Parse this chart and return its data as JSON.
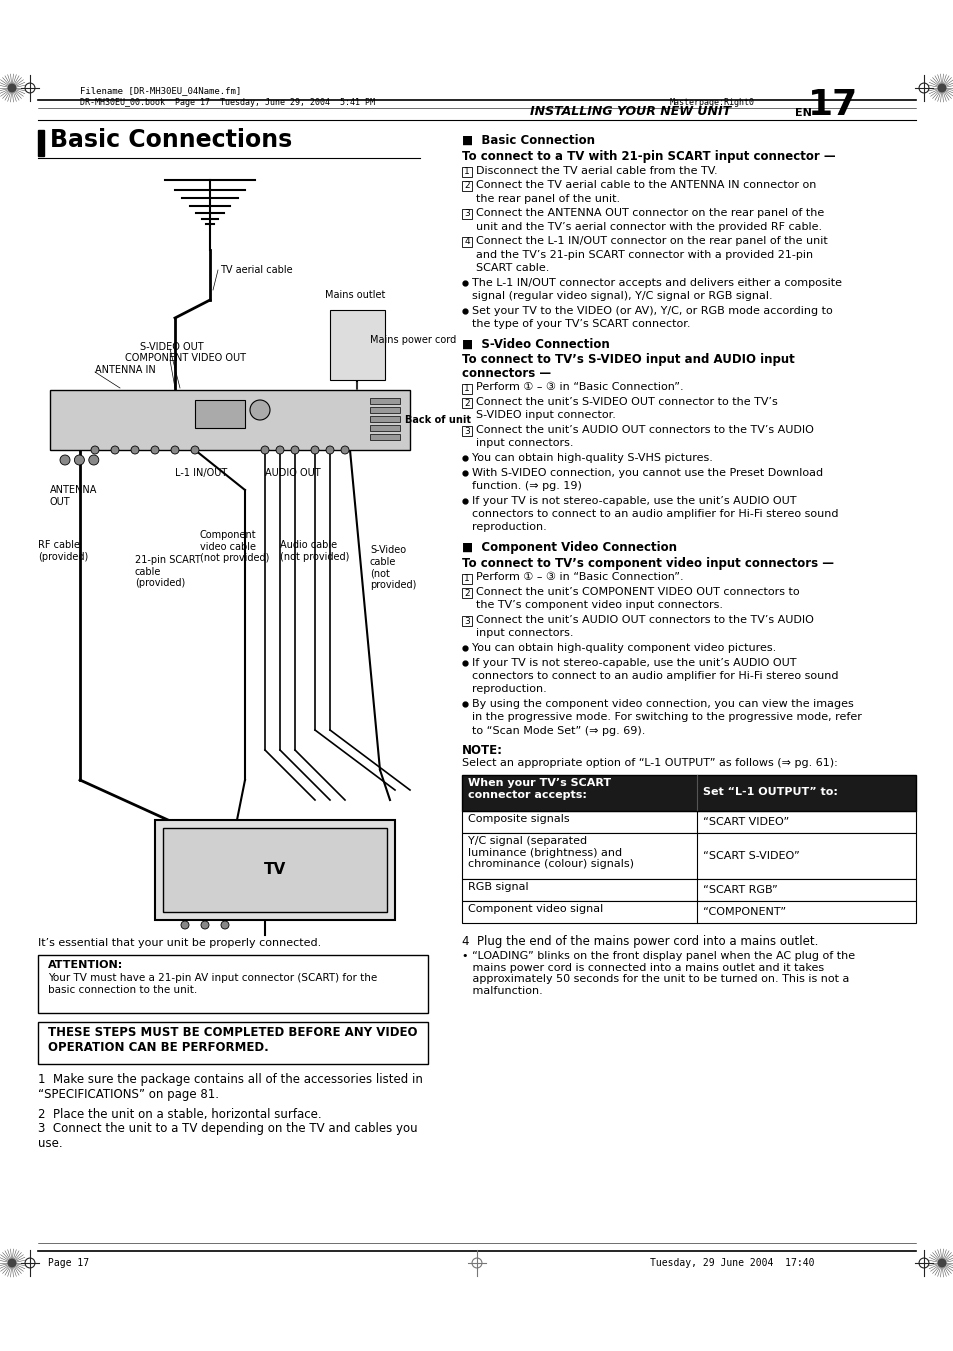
{
  "page_bg": "#ffffff",
  "header_filename": "Filename [DR-MH30EU_04Name.fm]",
  "header_book_info": "DR-MH30EU_00.book  Page 17  Tuesday, June 29, 2004  5:41 PM",
  "header_masterpage": "Masterpage:Right0",
  "header_title_italic": "INSTALLING YOUR NEW UNIT",
  "header_en": "EN",
  "header_page_num": "17",
  "footer_page": "Page 17",
  "footer_date": "Tuesday, 29 June 2004  17:40",
  "section_title": "Basic Connections",
  "right_col_content": [
    {
      "type": "heading",
      "text": "■  Basic Connection"
    },
    {
      "type": "subheading",
      "text": "To connect to a TV with 21-pin SCART input connector —"
    },
    {
      "type": "numbered",
      "num": "1",
      "text": "Disconnect the TV aerial cable from the TV."
    },
    {
      "type": "numbered",
      "num": "2",
      "text": "Connect the TV aerial cable to the ANTENNA IN connector on\nthe rear panel of the unit."
    },
    {
      "type": "numbered",
      "num": "3",
      "text": "Connect the ANTENNA OUT connector on the rear panel of the\nunit and the TV’s aerial connector with the provided RF cable."
    },
    {
      "type": "numbered",
      "num": "4",
      "text": "Connect the L-1 IN/OUT connector on the rear panel of the unit\nand the TV’s 21-pin SCART connector with a provided 21-pin\nSCART cable."
    },
    {
      "type": "bullet",
      "text": "The L-1 IN/OUT connector accepts and delivers either a composite\nsignal (regular video signal), Y/C signal or RGB signal."
    },
    {
      "type": "bullet",
      "text": "Set your TV to the VIDEO (or AV), Y/C, or RGB mode according to\nthe type of your TV’s SCART connector."
    },
    {
      "type": "heading",
      "text": "■  S-Video Connection"
    },
    {
      "type": "subheading",
      "text": "To connect to TV’s S-VIDEO input and AUDIO input\nconnectors —"
    },
    {
      "type": "numbered",
      "num": "1",
      "text": "Perform ① – ③ in “Basic Connection”."
    },
    {
      "type": "numbered",
      "num": "2",
      "text": "Connect the unit’s S-VIDEO OUT connector to the TV’s\nS-VIDEO input connector."
    },
    {
      "type": "numbered",
      "num": "3",
      "text": "Connect the unit’s AUDIO OUT connectors to the TV’s AUDIO\ninput connectors."
    },
    {
      "type": "bullet",
      "text": "You can obtain high-quality S-VHS pictures."
    },
    {
      "type": "bullet",
      "text": "With S-VIDEO connection, you cannot use the Preset Download\nfunction. (⇒ pg. 19)"
    },
    {
      "type": "bullet",
      "text": "If your TV is not stereo-capable, use the unit’s AUDIO OUT\nconnectors to connect to an audio amplifier for Hi-Fi stereo sound\nreproduction."
    },
    {
      "type": "heading",
      "text": "■  Component Video Connection"
    },
    {
      "type": "subheading",
      "text": "To connect to TV’s component video input connectors —"
    },
    {
      "type": "numbered",
      "num": "1",
      "text": "Perform ① – ③ in “Basic Connection”."
    },
    {
      "type": "numbered",
      "num": "2",
      "text": "Connect the unit’s COMPONENT VIDEO OUT connectors to\nthe TV’s component video input connectors."
    },
    {
      "type": "numbered",
      "num": "3",
      "text": "Connect the unit’s AUDIO OUT connectors to the TV’s AUDIO\ninput connectors."
    },
    {
      "type": "bullet",
      "text": "You can obtain high-quality component video pictures."
    },
    {
      "type": "bullet",
      "text": "If your TV is not stereo-capable, use the unit’s AUDIO OUT\nconnectors to connect to an audio amplifier for Hi-Fi stereo sound\nreproduction."
    },
    {
      "type": "bullet",
      "text": "By using the component video connection, you can view the images\nin the progressive mode. For switching to the progressive mode, refer\nto “Scan Mode Set” (⇒ pg. 69)."
    },
    {
      "type": "note_head",
      "text": "NOTE:"
    },
    {
      "type": "normal",
      "text": "Select an appropriate option of “L-1 OUTPUT” as follows (⇒ pg. 61):"
    }
  ],
  "table_header": [
    "When your TV’s SCART\nconnector accepts:",
    "Set “L-1 OUTPUT” to:"
  ],
  "table_rows": [
    [
      "Composite signals",
      "“SCART VIDEO”"
    ],
    [
      "Y/C signal (separated\nluminance (brightness) and\nchrominance (colour) signals)",
      "“SCART S-VIDEO”"
    ],
    [
      "RGB signal",
      "“SCART RGB”"
    ],
    [
      "Component video signal",
      "“COMPONENT”"
    ]
  ],
  "step4_text": "4  Plug the end of the mains power cord into a mains outlet.",
  "step4_bullet": "• “LOADING” blinks on the front display panel when the AC plug of the\n   mains power cord is connected into a mains outlet and it takes\n   approximately 50 seconds for the unit to be turned on. This is not a\n   malfunction.",
  "essential_text": "It’s essential that your unit be properly connected.",
  "attention_head": "ATTENTION:",
  "attention_body": "Your TV must have a 21-pin AV input connector (SCART) for the\nbasic connection to the unit.",
  "these_steps": "THESE STEPS MUST BE COMPLETED BEFORE ANY VIDEO\nOPERATION CAN BE PERFORMED.",
  "step1": "1  Make sure the package contains all of the accessories listed in\n“SPECIFICATIONS” on page 81.",
  "step2": "2  Place the unit on a stable, horizontal surface.",
  "step3": "3  Connect the unit to a TV depending on the TV and cables you\nuse."
}
